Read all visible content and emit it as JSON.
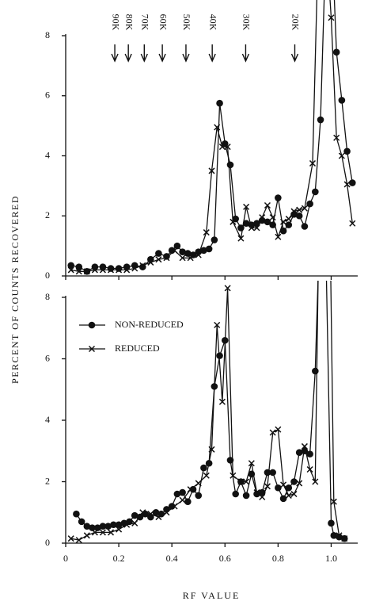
{
  "chart_data": [
    {
      "type": "line",
      "ylabel": "PERCENT OF COUNTS RECOVERED",
      "xlim": [
        0,
        1.1
      ],
      "ylim": [
        0,
        8
      ],
      "yticks": [
        0,
        2,
        4,
        6,
        8
      ],
      "markers": [
        {
          "label": "90K",
          "x": 0.185
        },
        {
          "label": "80K",
          "x": 0.236
        },
        {
          "label": "70K",
          "x": 0.296
        },
        {
          "label": "60K",
          "x": 0.364
        },
        {
          "label": "50K",
          "x": 0.453
        },
        {
          "label": "40K",
          "x": 0.552
        },
        {
          "label": "30K",
          "x": 0.678
        },
        {
          "label": "20K",
          "x": 0.863
        }
      ],
      "series": [
        {
          "marker": "circle",
          "color": "#111111",
          "x": [
            0.02,
            0.05,
            0.08,
            0.11,
            0.14,
            0.17,
            0.2,
            0.23,
            0.26,
            0.29,
            0.32,
            0.35,
            0.38,
            0.4,
            0.42,
            0.44,
            0.46,
            0.48,
            0.5,
            0.52,
            0.54,
            0.56,
            0.58,
            0.6,
            0.62,
            0.64,
            0.66,
            0.68,
            0.7,
            0.72,
            0.74,
            0.76,
            0.78,
            0.8,
            0.82,
            0.84,
            0.86,
            0.88,
            0.9,
            0.92,
            0.94,
            0.96,
            0.99,
            1.02,
            1.04,
            1.06,
            1.08
          ],
          "values": [
            0.35,
            0.3,
            0.15,
            0.3,
            0.3,
            0.25,
            0.25,
            0.3,
            0.35,
            0.3,
            0.55,
            0.75,
            0.65,
            0.85,
            1.0,
            0.8,
            0.75,
            0.7,
            0.8,
            0.85,
            0.9,
            1.2,
            5.75,
            4.4,
            3.7,
            1.9,
            1.6,
            1.75,
            1.7,
            1.75,
            1.85,
            1.8,
            1.7,
            2.6,
            1.5,
            1.7,
            2.05,
            2.0,
            1.65,
            2.4,
            2.8,
            5.2,
            14,
            7.45,
            5.85,
            4.15,
            3.1
          ]
        },
        {
          "marker": "cross",
          "color": "#111111",
          "x": [
            0.02,
            0.05,
            0.08,
            0.11,
            0.14,
            0.17,
            0.2,
            0.23,
            0.26,
            0.29,
            0.32,
            0.35,
            0.38,
            0.41,
            0.44,
            0.47,
            0.5,
            0.53,
            0.55,
            0.57,
            0.59,
            0.61,
            0.63,
            0.66,
            0.68,
            0.7,
            0.72,
            0.74,
            0.76,
            0.78,
            0.8,
            0.82,
            0.84,
            0.86,
            0.88,
            0.9,
            0.93,
            0.96,
            1.0,
            1.02,
            1.04,
            1.06,
            1.08
          ],
          "values": [
            0.2,
            0.15,
            0.15,
            0.2,
            0.2,
            0.2,
            0.2,
            0.2,
            0.25,
            0.35,
            0.45,
            0.55,
            0.6,
            0.85,
            0.6,
            0.6,
            0.7,
            1.45,
            3.5,
            4.95,
            4.3,
            4.3,
            1.8,
            1.25,
            2.3,
            1.6,
            1.6,
            1.95,
            2.35,
            1.95,
            1.3,
            1.8,
            1.9,
            2.15,
            2.2,
            2.25,
            3.75,
            14,
            8.6,
            4.6,
            4.0,
            3.05,
            1.75
          ]
        }
      ]
    },
    {
      "type": "line",
      "xlabel": "RF VALUE",
      "xlim": [
        0,
        1.1
      ],
      "xticks": [
        0,
        0.2,
        0.4,
        0.6,
        0.8,
        {
          "value": 1,
          "label": "1.0"
        }
      ],
      "ylim": [
        0,
        8
      ],
      "yticks": [
        0,
        2,
        4,
        6,
        8
      ],
      "series": [
        {
          "name": "NON-REDUCED",
          "marker": "circle",
          "color": "#111111",
          "x": [
            0.04,
            0.06,
            0.08,
            0.1,
            0.12,
            0.14,
            0.16,
            0.18,
            0.2,
            0.22,
            0.24,
            0.26,
            0.28,
            0.3,
            0.32,
            0.34,
            0.36,
            0.38,
            0.4,
            0.42,
            0.44,
            0.46,
            0.48,
            0.5,
            0.52,
            0.54,
            0.56,
            0.58,
            0.6,
            0.62,
            0.64,
            0.66,
            0.68,
            0.7,
            0.72,
            0.74,
            0.76,
            0.78,
            0.8,
            0.82,
            0.84,
            0.86,
            0.88,
            0.9,
            0.92,
            0.94,
            0.97,
            1.0,
            1.01,
            1.03,
            1.05
          ],
          "values": [
            0.95,
            0.7,
            0.55,
            0.5,
            0.5,
            0.55,
            0.55,
            0.6,
            0.6,
            0.65,
            0.7,
            0.9,
            0.85,
            0.95,
            0.85,
            1.0,
            0.95,
            1.1,
            1.2,
            1.6,
            1.65,
            1.35,
            1.75,
            1.55,
            2.45,
            2.6,
            5.1,
            6.1,
            6.6,
            2.7,
            1.6,
            2.0,
            1.55,
            2.25,
            1.6,
            1.65,
            2.3,
            2.3,
            1.8,
            1.45,
            1.8,
            2.0,
            2.95,
            3.0,
            2.9,
            5.6,
            14,
            0.65,
            0.25,
            0.2,
            0.15
          ]
        },
        {
          "name": "REDUCED",
          "marker": "cross",
          "color": "#111111",
          "x": [
            0.02,
            0.05,
            0.08,
            0.11,
            0.14,
            0.17,
            0.2,
            0.23,
            0.26,
            0.29,
            0.32,
            0.35,
            0.38,
            0.41,
            0.44,
            0.47,
            0.5,
            0.53,
            0.55,
            0.57,
            0.59,
            0.61,
            0.63,
            0.66,
            0.68,
            0.7,
            0.72,
            0.74,
            0.76,
            0.78,
            0.8,
            0.82,
            0.84,
            0.86,
            0.88,
            0.9,
            0.92,
            0.94,
            0.96,
            0.99,
            1.01,
            1.03,
            1.05
          ],
          "values": [
            0.15,
            0.1,
            0.25,
            0.35,
            0.35,
            0.35,
            0.45,
            0.6,
            0.65,
            1.0,
            0.95,
            0.85,
            1.0,
            1.2,
            1.4,
            1.75,
            1.95,
            2.2,
            3.05,
            7.1,
            4.6,
            8.3,
            2.2,
            2.0,
            2.0,
            2.6,
            1.65,
            1.5,
            1.85,
            3.6,
            3.7,
            1.9,
            1.55,
            1.6,
            1.95,
            3.15,
            2.4,
            2.0,
            14,
            14,
            1.35,
            0.25,
            0.15
          ]
        }
      ]
    }
  ]
}
